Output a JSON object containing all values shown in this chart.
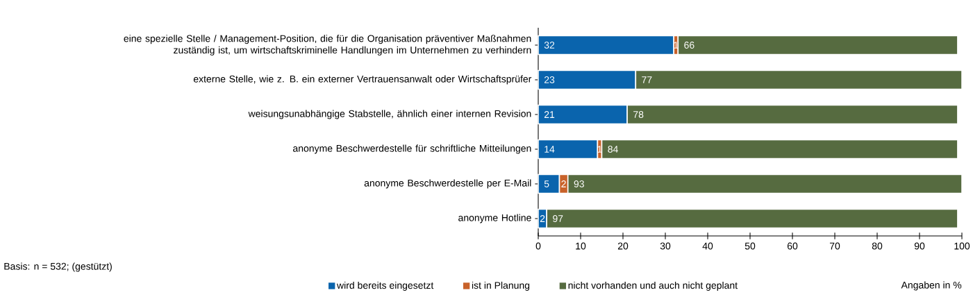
{
  "chart_data": {
    "type": "bar",
    "orientation": "horizontal",
    "stacked": true,
    "categories": [
      "eine spezielle Stelle / Management-Position, die für die Organisation präventiver Maßnahmen zuständig ist, um wirtschaftskriminelle Handlungen im Unternehmen zu verhindern",
      "externe Stelle, wie z. B. ein externer Vertrauensanwalt oder Wirtschaftsprüfer",
      "weisungsunabhängige Stabstelle, ähnlich einer internen Revision",
      "anonyme Beschwerdestelle für schriftliche Mitteilungen",
      "anonyme Beschwerdestelle per E-Mail",
      "anonyme Hotline"
    ],
    "series": [
      {
        "name": "wird bereits eingesetzt",
        "color": "#0a64ad",
        "values": [
          32,
          23,
          21,
          14,
          5,
          2
        ]
      },
      {
        "name": "ist in Planung",
        "color": "#c8622a",
        "values": [
          1,
          null,
          null,
          1,
          2,
          null
        ]
      },
      {
        "name": "nicht vorhanden und auch nicht geplant",
        "color": "#566b40",
        "values": [
          66,
          77,
          78,
          84,
          93,
          97
        ]
      }
    ],
    "xlim": [
      0,
      100
    ],
    "xticks": [
      0,
      10,
      20,
      30,
      40,
      50,
      60,
      70,
      80,
      90,
      100
    ],
    "data_labels": true,
    "legend": "bottom",
    "annotations": [
      "Basis: n = 532; (gestützt)",
      "Angaben in %"
    ]
  }
}
